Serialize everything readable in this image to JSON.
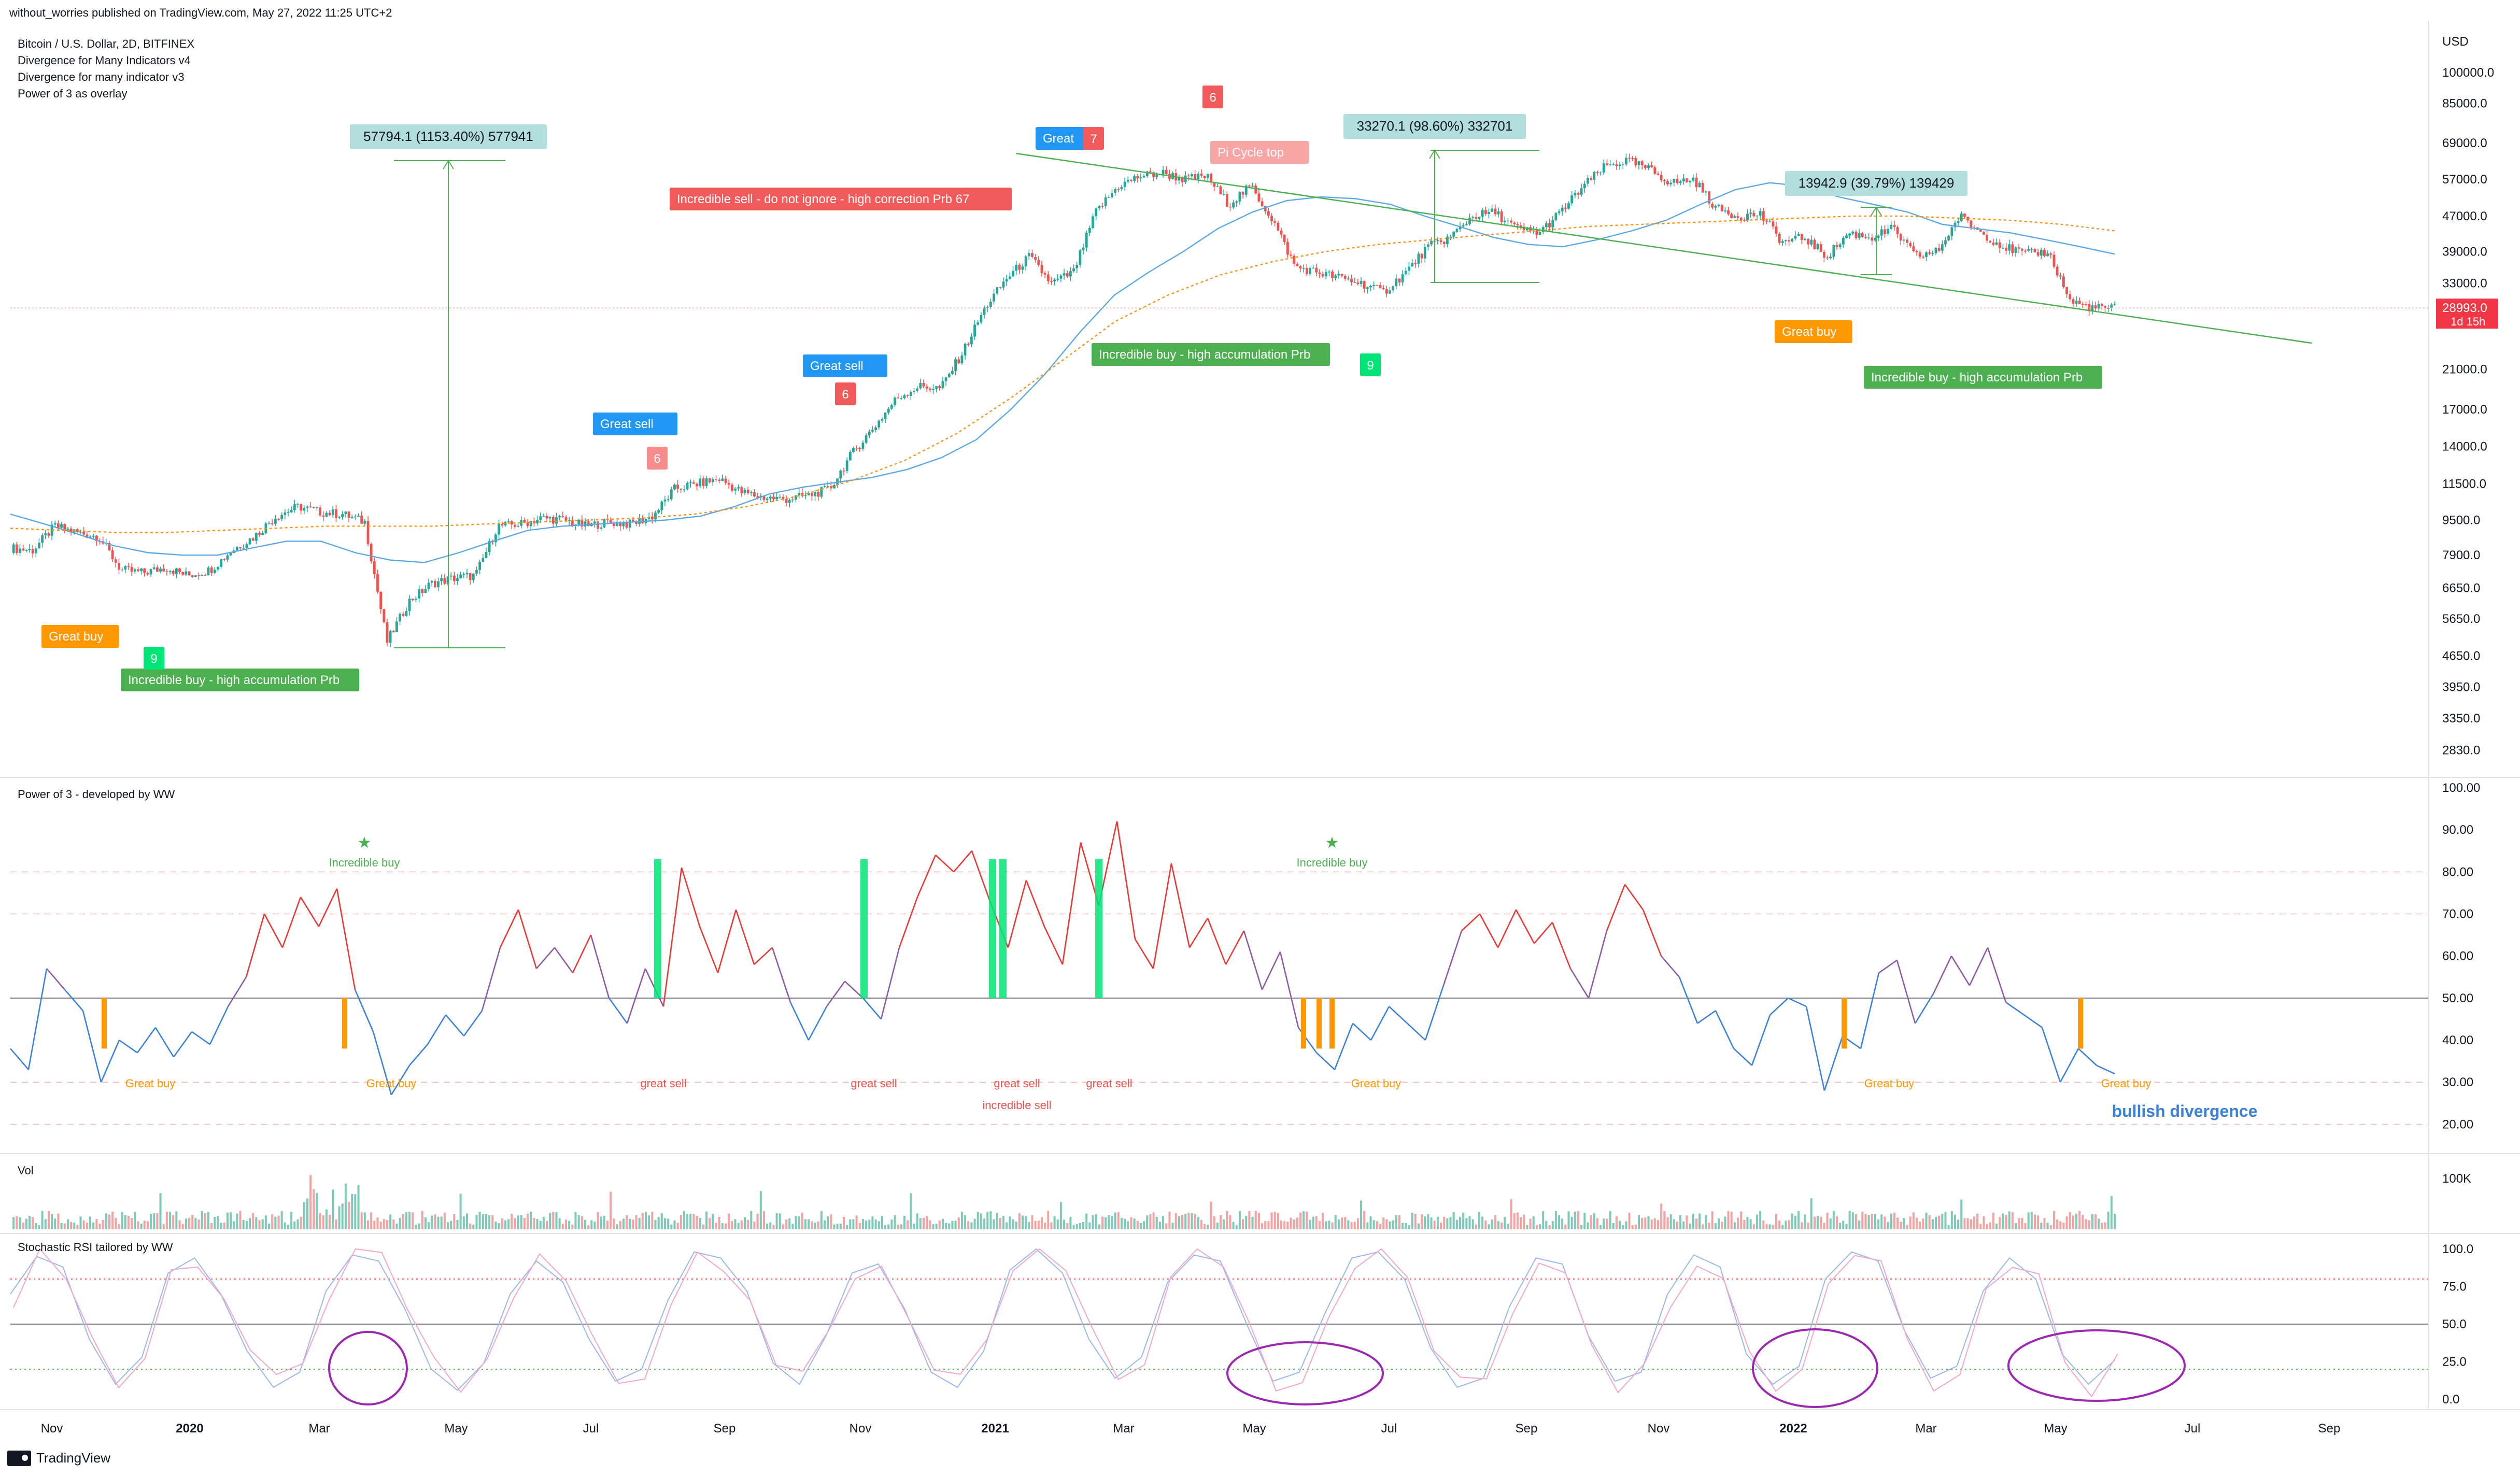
{
  "header": {
    "publisher": "without_worries published on TradingView.com, May 27, 2022 11:25 UTC+2"
  },
  "legend_lines": [
    "Bitcoin / U.S. Dollar, 2D, BITFINEX",
    "Divergence for Many Indicators v4",
    "Divergence for many indicator v3",
    "Power of 3 as overlay"
  ],
  "footer": {
    "brand": "TradingView"
  },
  "colors": {
    "up": "#26a69a",
    "down": "#ef5350",
    "green_line": "#4caf50",
    "blue_ma": "#5aa9e6",
    "orange_ma": "#f7931a",
    "purple": "#9c27b0",
    "label_red": "#f15b5b",
    "label_blue": "#2196f3",
    "label_green": "#4caf50",
    "label_orange": "#ff9800",
    "label_mint": "#b2dfdb"
  },
  "chart_data": [
    {
      "type": "candlestick",
      "panel": "price",
      "yscale": "log",
      "ylabel": "USD",
      "y_ticks": [
        "100000.0",
        "85000.0",
        "69000.0",
        "57000.0",
        "47000.0",
        "39000.0",
        "33000.0",
        "28993.0",
        "21000.0",
        "17000.0",
        "14000.0",
        "11500.0",
        "9500.0",
        "7900.0",
        "6650.0",
        "5650.0",
        "4650.0",
        "3950.0",
        "3350.0",
        "2830.0"
      ],
      "last_price": "28993.0",
      "countdown": "1d 15h",
      "x_ticks": [
        "Nov",
        "2020",
        "Mar",
        "May",
        "Jul",
        "Sep",
        "Nov",
        "2021",
        "Mar",
        "May",
        "Jul",
        "Sep",
        "Nov",
        "2022",
        "Mar",
        "May",
        "Jul",
        "Sep"
      ],
      "closes_approx": [
        8200,
        8100,
        9200,
        8900,
        8700,
        7300,
        7200,
        7400,
        7100,
        7300,
        8100,
        8700,
        9700,
        10200,
        9900,
        9800,
        9400,
        5000,
        6200,
        6800,
        7000,
        7100,
        9200,
        9300,
        9600,
        9500,
        9200,
        9400,
        9300,
        9700,
        11200,
        11500,
        11800,
        11000,
        10700,
        10600,
        10800,
        11200,
        13500,
        15500,
        18000,
        19200,
        19000,
        23000,
        29000,
        34000,
        38000,
        33000,
        35000,
        48000,
        55000,
        58000,
        59000,
        57000,
        58000,
        50000,
        55000,
        46000,
        36000,
        35000,
        34000,
        33000,
        31500,
        35000,
        40000,
        42000,
        47000,
        48000,
        44000,
        43000,
        48000,
        55000,
        61000,
        63000,
        60000,
        56000,
        57000,
        49000,
        47000,
        47500,
        41000,
        42000,
        38000,
        43000,
        42000,
        44000,
        38000,
        39000,
        47000,
        43000,
        40000,
        38500,
        39000,
        30000,
        29000,
        28993
      ],
      "ma_blue_approx": [
        9800,
        9300,
        8800,
        8300,
        8000,
        7900,
        7900,
        8200,
        8500,
        8500,
        8000,
        7700,
        7600,
        8000,
        8500,
        9000,
        9200,
        9300,
        9400,
        9500,
        9700,
        10200,
        10900,
        11300,
        11600,
        11900,
        12400,
        13200,
        14500,
        17000,
        20500,
        25500,
        31000,
        35000,
        39000,
        44000,
        48000,
        51000,
        52000,
        51500,
        50000,
        47000,
        44500,
        42000,
        40500,
        40000,
        41500,
        43500,
        46000,
        50000,
        54000,
        56000,
        55000,
        52000,
        50000,
        48000,
        45000,
        44000,
        43000,
        41500,
        40000,
        38500
      ],
      "ma_orange_approx": [
        9100,
        9000,
        8900,
        8900,
        9000,
        9100,
        9200,
        9200,
        9200,
        9300,
        9400,
        9500,
        9600,
        9800,
        10200,
        10800,
        11700,
        13000,
        15000,
        18000,
        22000,
        27000,
        31000,
        34500,
        37000,
        39000,
        40500,
        41500,
        42500,
        43500,
        44500,
        45000,
        45500,
        46000,
        46500,
        47000,
        47000,
        46500,
        46000,
        45000,
        43500
      ],
      "annotations": [
        {
          "text": "57794.1 (1153.40%) 577941",
          "kind": "measure"
        },
        {
          "text": "33270.1 (98.60%) 332701",
          "kind": "measure"
        },
        {
          "text": "13942.9 (39.79%) 139429",
          "kind": "measure"
        },
        {
          "text": "Incredible sell - do not ignore - high correction Prb  67",
          "kind": "sell"
        },
        {
          "text": "Pi Cycle top",
          "kind": "sell-light"
        },
        {
          "text": "Great sell",
          "kind": "sell-blue"
        },
        {
          "text": "Great sell",
          "kind": "sell-blue"
        },
        {
          "text": "Great",
          "kind": "sell-blue"
        },
        {
          "text": "7",
          "kind": "count-red"
        },
        {
          "text": "6",
          "kind": "count-red"
        },
        {
          "text": "6",
          "kind": "count-red"
        },
        {
          "text": "6",
          "kind": "count-red"
        },
        {
          "text": "Incredible buy - high accumulation Prb",
          "kind": "buy"
        },
        {
          "text": "Incredible buy - high accumulation Prb",
          "kind": "buy"
        },
        {
          "text": "Incredible buy - high accumulation Prb",
          "kind": "buy"
        },
        {
          "text": "Great buy",
          "kind": "buy-orange"
        },
        {
          "text": "Great buy",
          "kind": "buy-orange"
        },
        {
          "text": "9",
          "kind": "count-green"
        },
        {
          "text": "9",
          "kind": "count-green"
        }
      ]
    },
    {
      "type": "line",
      "panel": "power3",
      "title": "Power of 3 - developed by WW",
      "y_ticks": [
        "100.00",
        "90.00",
        "80.00",
        "70.00",
        "60.00",
        "50.00",
        "40.00",
        "30.00",
        "20.00"
      ],
      "ylim": [
        15,
        100
      ],
      "values_approx": [
        38,
        33,
        57,
        52,
        47,
        30,
        40,
        37,
        43,
        36,
        42,
        39,
        48,
        55,
        70,
        62,
        74,
        67,
        76,
        52,
        42,
        27,
        34,
        39,
        46,
        41,
        47,
        62,
        71,
        57,
        62,
        56,
        65,
        50,
        44,
        57,
        48,
        81,
        67,
        56,
        71,
        58,
        62,
        49,
        40,
        48,
        54,
        50,
        45,
        62,
        74,
        84,
        80,
        85,
        73,
        62,
        78,
        67,
        58,
        87,
        72,
        92,
        64,
        57,
        82,
        62,
        69,
        58,
        66,
        52,
        61,
        43,
        37,
        33,
        44,
        40,
        48,
        44,
        40,
        53,
        66,
        70,
        62,
        71,
        63,
        68,
        57,
        50,
        66,
        77,
        71,
        60,
        55,
        44,
        47,
        38,
        34,
        46,
        50,
        48,
        28,
        41,
        38,
        56,
        59,
        44,
        51,
        60,
        53,
        62,
        49,
        46,
        43,
        30,
        38,
        34,
        32
      ],
      "labels": [
        "Incredible buy",
        "Incredible buy",
        "Great buy",
        "Great buy",
        "Great buy",
        "Great buy",
        "Great buy",
        "great sell",
        "great sell",
        "great sell",
        "great sell",
        "incredible sell",
        "bullish divergence"
      ]
    },
    {
      "type": "bar",
      "panel": "volume",
      "title": "Vol",
      "y_ticks": [
        "100K"
      ]
    },
    {
      "type": "line",
      "panel": "stoch_rsi",
      "title": "Stochastic RSI tailored by WW",
      "y_ticks": [
        "100.0",
        "75.0",
        "50.0",
        "25.0",
        "0.0"
      ],
      "ylim": [
        0,
        100
      ],
      "values_approx": [
        70,
        95,
        88,
        40,
        10,
        28,
        84,
        94,
        70,
        32,
        8,
        18,
        72,
        96,
        92,
        60,
        20,
        6,
        24,
        70,
        92,
        78,
        40,
        12,
        20,
        66,
        98,
        94,
        72,
        24,
        10,
        42,
        84,
        90,
        60,
        18,
        8,
        32,
        86,
        100,
        84,
        40,
        14,
        28,
        78,
        96,
        92,
        50,
        12,
        18,
        58,
        94,
        98,
        80,
        34,
        8,
        14,
        62,
        94,
        90,
        42,
        12,
        18,
        70,
        96,
        88,
        30,
        10,
        22,
        80,
        98,
        92,
        46,
        14,
        22,
        72,
        94,
        80,
        30,
        10,
        26
      ]
    }
  ]
}
